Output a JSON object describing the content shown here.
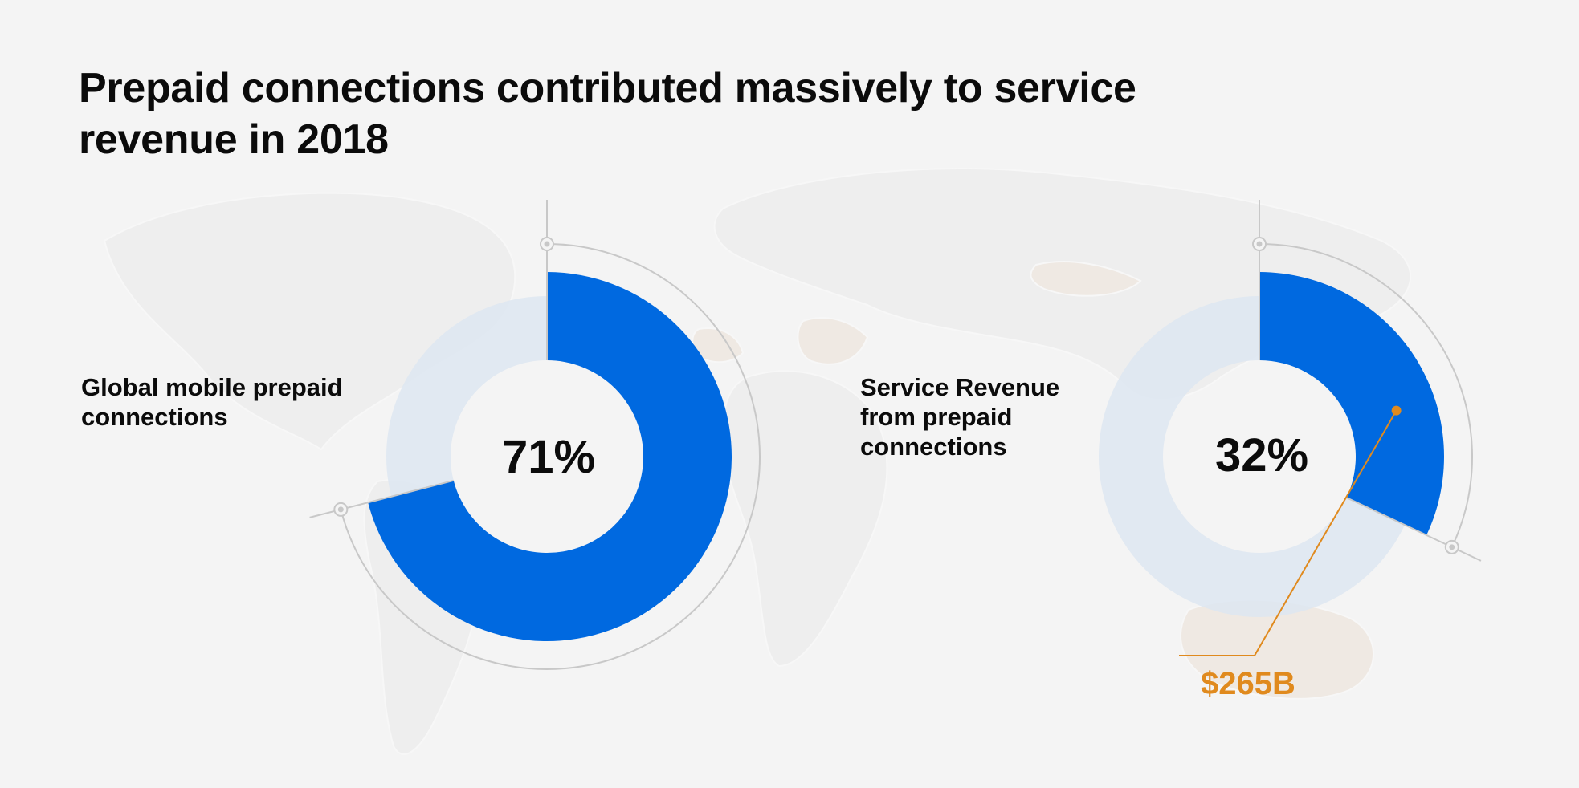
{
  "title": "Prepaid connections contributed massively to service revenue in 2018",
  "colors": {
    "accent": "#0069e0",
    "track": "#dde6f1",
    "outline": "#c8c8c8",
    "callout": "#e08a1e",
    "background": "#f4f4f4"
  },
  "chart_data": [
    {
      "type": "pie",
      "label": "Global mobile prepaid connections",
      "value": 71,
      "value_label": "71%"
    },
    {
      "type": "pie",
      "label": "Service Revenue from prepaid connections",
      "value": 32,
      "value_label": "32%",
      "annotation": "$265B"
    }
  ]
}
